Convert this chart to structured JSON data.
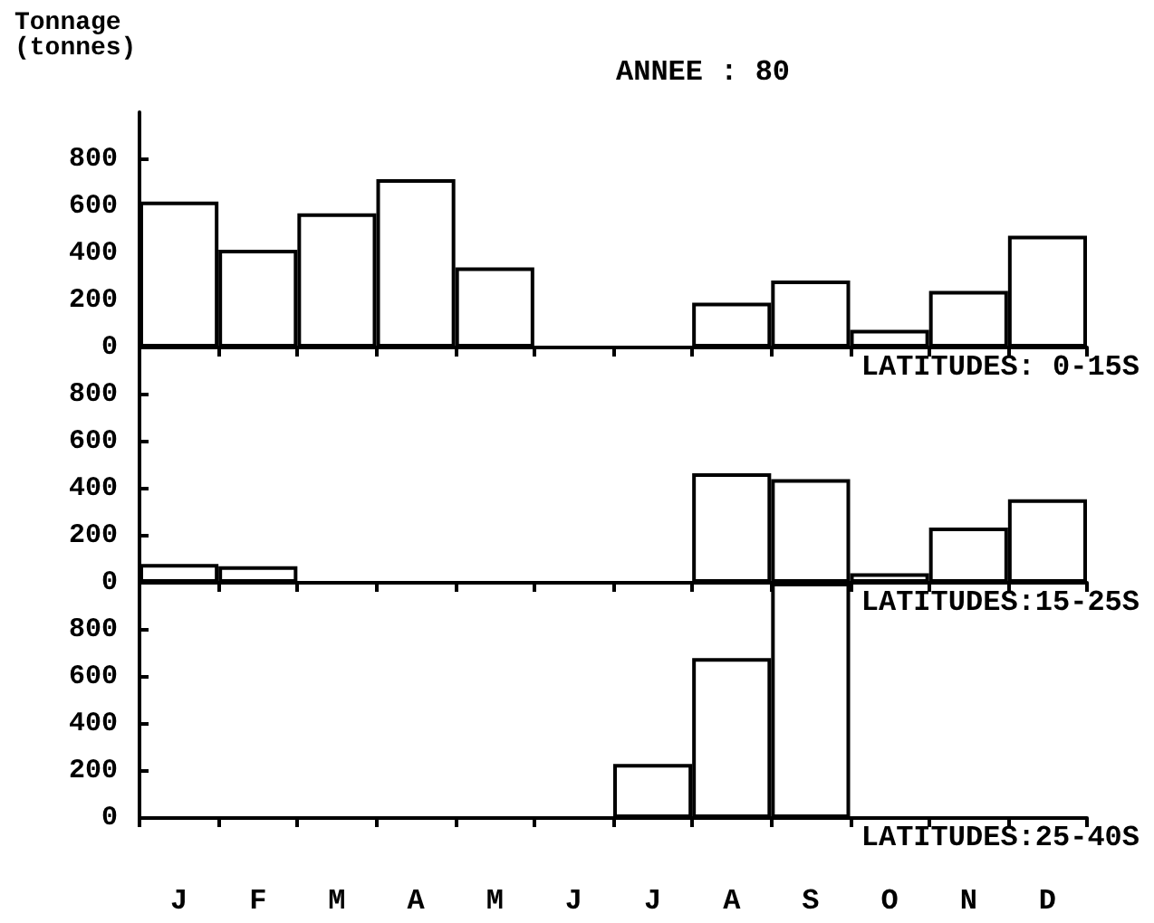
{
  "chart_data": [
    {
      "type": "bar",
      "title": "ANNEE : 80",
      "ylabel": "Tonnage (tonnes)",
      "annotations": [
        "LATITUDES: 0-15S"
      ],
      "categories": [
        null,
        null,
        null,
        null,
        null,
        null,
        null,
        null,
        null,
        null,
        null,
        null
      ],
      "series": [
        {
          "color": "#000000",
          "values": [
            620,
            415,
            570,
            715,
            340,
            0,
            0,
            190,
            285,
            75,
            240,
            475
          ]
        }
      ],
      "ylim": [
        0,
        1000
      ],
      "yticks": [
        0,
        200,
        400,
        600,
        800
      ],
      "grid": false
    },
    {
      "type": "bar",
      "annotations": [
        "LATITUDES:15-25S"
      ],
      "categories": [
        null,
        null,
        null,
        null,
        null,
        null,
        null,
        null,
        null,
        null,
        null,
        null
      ],
      "series": [
        {
          "color": "#000000",
          "values": [
            80,
            70,
            0,
            0,
            0,
            0,
            0,
            465,
            440,
            40,
            235,
            355
          ]
        }
      ],
      "ylim": [
        0,
        1000
      ],
      "yticks": [
        0,
        200,
        400,
        600,
        800
      ],
      "grid": false
    },
    {
      "type": "bar",
      "annotations": [
        "LATITUDES:25-40S"
      ],
      "categories": [
        "J",
        "F",
        "M",
        "A",
        "M",
        "J",
        "J",
        "A",
        "S",
        "O",
        "N",
        "D"
      ],
      "series": [
        {
          "color": "#000000",
          "values": [
            0,
            0,
            0,
            0,
            0,
            0,
            230,
            680,
            1000,
            0,
            0,
            0
          ]
        }
      ],
      "ylim": [
        0,
        1000
      ],
      "yticks": [
        0,
        200,
        400,
        600,
        800
      ],
      "grid": false
    }
  ]
}
